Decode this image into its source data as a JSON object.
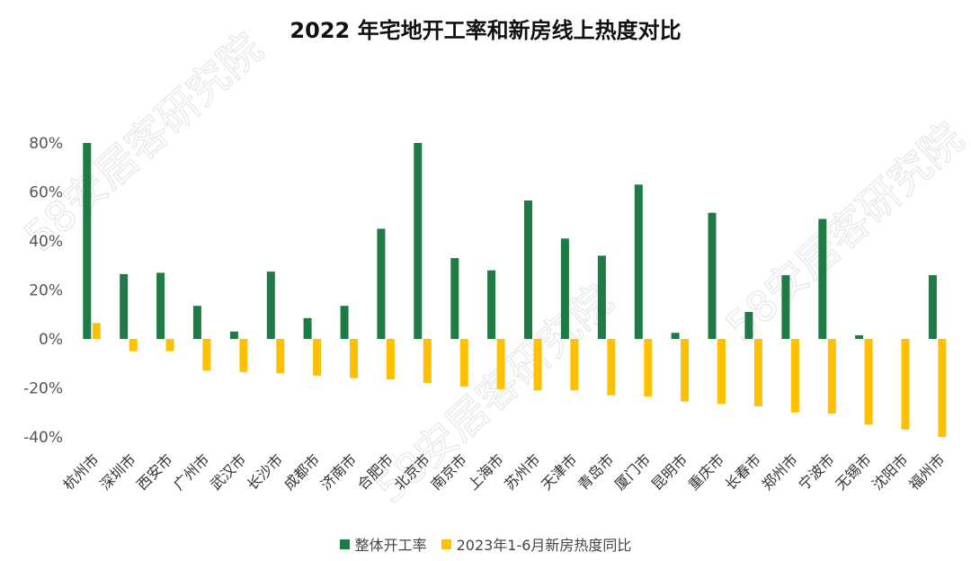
{
  "chart_data": {
    "type": "bar",
    "title": "2022 年宅地开工率和新房线上热度对比",
    "categories": [
      "杭州市",
      "深圳市",
      "西安市",
      "广州市",
      "武汉市",
      "长沙市",
      "成都市",
      "济南市",
      "合肥市",
      "北京市",
      "南京市",
      "上海市",
      "苏州市",
      "天津市",
      "青岛市",
      "厦门市",
      "昆明市",
      "重庆市",
      "长春市",
      "郑州市",
      "宁波市",
      "无锡市",
      "沈阳市",
      "福州市"
    ],
    "series": [
      {
        "name": "整体开工率",
        "color": "#1e7b45",
        "values": [
          80,
          26.5,
          27,
          13.5,
          3,
          27.5,
          8.5,
          13.5,
          45,
          80,
          33,
          28,
          56.5,
          41,
          34,
          63,
          2.5,
          51.5,
          11,
          26,
          49,
          1.5,
          0,
          26
        ]
      },
      {
        "name": "2023年1-6月新房热度同比",
        "color": "#ffc000",
        "values": [
          6.5,
          -5,
          -5,
          -13,
          -13.5,
          -14,
          -15,
          -16,
          -16.5,
          -18,
          -19.5,
          -20.5,
          -21,
          -21,
          -23,
          -23.5,
          -25.5,
          -26.5,
          -27.5,
          -30,
          -30.5,
          -35,
          -37,
          -40
        ]
      }
    ],
    "ylim": [
      -40,
      80
    ],
    "yticks": [
      "80%",
      "60%",
      "40%",
      "20%",
      "0%",
      "-20%",
      "-40%"
    ],
    "ytick_values": [
      80,
      60,
      40,
      20,
      0,
      -20,
      -40
    ],
    "legend": "bottom",
    "watermark": "58安居客研究院"
  }
}
